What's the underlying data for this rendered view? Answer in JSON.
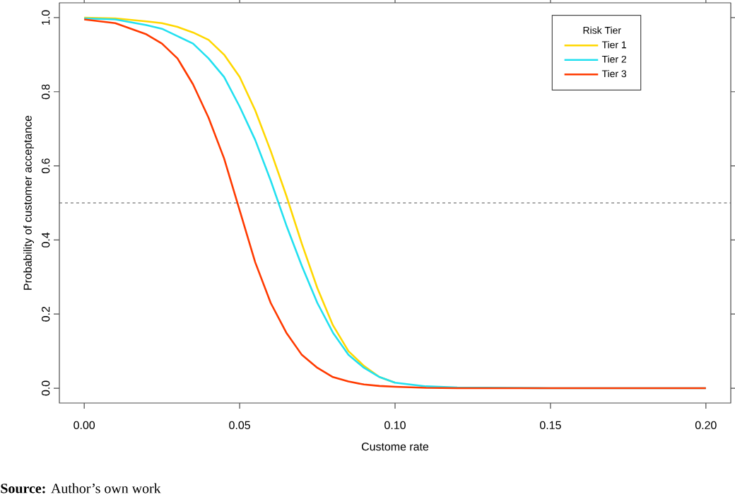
{
  "chart_data": {
    "type": "line",
    "xlabel": "Custome rate",
    "ylabel": "Probability of customer acceptance",
    "legend_title": "Risk Tier",
    "x": [
      0,
      0.01,
      0.02,
      0.025,
      0.03,
      0.035,
      0.04,
      0.045,
      0.05,
      0.055,
      0.06,
      0.065,
      0.07,
      0.075,
      0.08,
      0.085,
      0.09,
      0.095,
      0.1,
      0.11,
      0.12,
      0.15,
      0.2
    ],
    "series": [
      {
        "name": "Tier 1",
        "color": "#ffd700",
        "values": [
          1.0,
          0.998,
          0.99,
          0.985,
          0.975,
          0.96,
          0.94,
          0.9,
          0.84,
          0.75,
          0.64,
          0.52,
          0.39,
          0.27,
          0.17,
          0.1,
          0.06,
          0.03,
          0.015,
          null,
          null,
          null,
          null
        ]
      },
      {
        "name": "Tier 2",
        "color": "#22e0f0",
        "values": [
          0.998,
          0.995,
          0.98,
          0.97,
          0.95,
          0.93,
          0.89,
          0.84,
          0.76,
          0.67,
          0.56,
          0.44,
          0.33,
          0.23,
          0.15,
          0.09,
          0.055,
          0.03,
          0.015,
          0.005,
          0.002,
          0,
          0
        ]
      },
      {
        "name": "Tier 3",
        "color": "#ff3a00",
        "values": [
          0.995,
          0.985,
          0.955,
          0.93,
          0.89,
          0.82,
          0.73,
          0.62,
          0.48,
          0.34,
          0.23,
          0.15,
          0.09,
          0.055,
          0.03,
          0.018,
          0.01,
          0.006,
          0.004,
          0.001,
          0,
          0,
          0
        ]
      }
    ],
    "xlim": [
      -0.008,
      0.208
    ],
    "ylim": [
      -0.04,
      1.04
    ],
    "xticks": [
      {
        "value": 0,
        "label": "0.00"
      },
      {
        "value": 0.05,
        "label": "0.05"
      },
      {
        "value": 0.1,
        "label": "0.10"
      },
      {
        "value": 0.15,
        "label": "0.15"
      },
      {
        "value": 0.2,
        "label": "0.20"
      }
    ],
    "yticks": [
      {
        "value": 0,
        "label": "0.0"
      },
      {
        "value": 0.2,
        "label": "0.2"
      },
      {
        "value": 0.4,
        "label": "0.4"
      },
      {
        "value": 0.6,
        "label": "0.6"
      },
      {
        "value": 0.8,
        "label": "0.8"
      },
      {
        "value": 1,
        "label": "1.0"
      }
    ],
    "ref_lines": [
      {
        "axis": "y",
        "value": 0.5,
        "line_style": "dashed",
        "color": "#555555"
      }
    ],
    "legend": "top right",
    "grid": false,
    "marker": "none",
    "line_style": "solid",
    "annotations": [
      "**Source:** Author’s own work"
    ]
  }
}
